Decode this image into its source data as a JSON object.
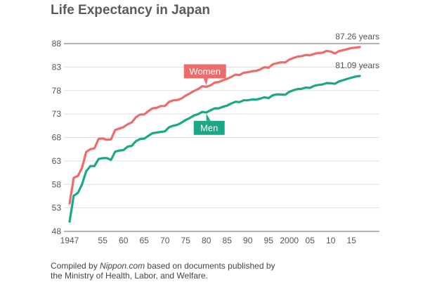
{
  "chart_data": {
    "type": "line",
    "title": "Life Expectancy in Japan",
    "xlabel": "",
    "ylabel": "",
    "xlim": [
      1947,
      2017
    ],
    "ylim": [
      48,
      88
    ],
    "yticks": [
      48,
      53,
      58,
      63,
      68,
      73,
      78,
      83,
      88
    ],
    "xticks": [
      {
        "value": 1947,
        "label": "1947"
      },
      {
        "value": 1955,
        "label": "55"
      },
      {
        "value": 1960,
        "label": "60"
      },
      {
        "value": 1965,
        "label": "65"
      },
      {
        "value": 1970,
        "label": "70"
      },
      {
        "value": 1975,
        "label": "75"
      },
      {
        "value": 1980,
        "label": "80"
      },
      {
        "value": 1985,
        "label": "85"
      },
      {
        "value": 1990,
        "label": "90"
      },
      {
        "value": 1995,
        "label": "95"
      },
      {
        "value": 2000,
        "label": "2000"
      },
      {
        "value": 2005,
        "label": "05"
      },
      {
        "value": 2010,
        "label": "10"
      },
      {
        "value": 2015,
        "label": "15"
      }
    ],
    "grid": true,
    "x": [
      1947,
      1948,
      1949,
      1950,
      1951,
      1952,
      1953,
      1954,
      1955,
      1956,
      1957,
      1958,
      1959,
      1960,
      1961,
      1962,
      1963,
      1964,
      1965,
      1966,
      1967,
      1968,
      1969,
      1970,
      1971,
      1972,
      1973,
      1974,
      1975,
      1976,
      1977,
      1978,
      1979,
      1980,
      1981,
      1982,
      1983,
      1984,
      1985,
      1986,
      1987,
      1988,
      1989,
      1990,
      1991,
      1992,
      1993,
      1994,
      1995,
      1996,
      1997,
      1998,
      1999,
      2000,
      2001,
      2002,
      2003,
      2004,
      2005,
      2006,
      2007,
      2008,
      2009,
      2010,
      2011,
      2012,
      2013,
      2014,
      2015,
      2016,
      2017
    ],
    "series": [
      {
        "name": "Women",
        "color": "#ec6b6b",
        "end_label": "87.26 years",
        "values": [
          53.96,
          59.4,
          59.8,
          61.5,
          64.9,
          65.5,
          65.7,
          67.7,
          67.8,
          67.5,
          67.6,
          69.6,
          69.9,
          70.2,
          70.8,
          71.2,
          72.3,
          72.9,
          72.9,
          73.6,
          74.2,
          74.3,
          74.7,
          74.7,
          75.6,
          75.9,
          76.0,
          76.3,
          76.9,
          77.4,
          77.9,
          78.3,
          78.9,
          78.8,
          79.1,
          79.7,
          79.8,
          80.2,
          80.5,
          80.9,
          81.4,
          81.3,
          81.8,
          81.9,
          82.1,
          82.2,
          82.5,
          82.98,
          82.85,
          83.59,
          83.82,
          84.01,
          83.99,
          84.6,
          84.93,
          85.23,
          85.33,
          85.59,
          85.52,
          85.81,
          85.99,
          86.05,
          86.44,
          86.3,
          85.9,
          86.41,
          86.61,
          86.83,
          87.05,
          87.14,
          87.26
        ]
      },
      {
        "name": "Men",
        "color": "#1aa886",
        "end_label": "81.09 years",
        "values": [
          50.06,
          55.6,
          56.2,
          58.0,
          60.8,
          61.9,
          61.9,
          63.41,
          63.6,
          63.59,
          63.24,
          64.98,
          65.21,
          65.32,
          66.03,
          66.23,
          67.21,
          67.67,
          67.74,
          68.35,
          68.91,
          69.05,
          69.18,
          69.31,
          70.17,
          70.5,
          70.7,
          71.16,
          71.73,
          72.15,
          72.69,
          72.97,
          73.46,
          73.35,
          73.79,
          74.22,
          74.2,
          74.54,
          74.78,
          75.23,
          75.61,
          75.54,
          75.91,
          75.92,
          76.11,
          76.09,
          76.25,
          76.57,
          76.38,
          77.01,
          77.19,
          77.16,
          77.1,
          77.72,
          78.07,
          78.32,
          78.36,
          78.64,
          78.56,
          79.0,
          79.19,
          79.29,
          79.59,
          79.55,
          79.44,
          79.94,
          80.21,
          80.5,
          80.75,
          80.98,
          81.09
        ]
      }
    ],
    "annotations": [
      {
        "series": "Women",
        "text": "Women",
        "at_x": 1980
      },
      {
        "series": "Men",
        "text": "Men",
        "at_x": 1980
      }
    ]
  },
  "source": {
    "prefix": "Compiled by ",
    "italic": "Nippon.com",
    "suffix": " based on documents published by",
    "line2": "the Ministry of Health, Labor, and Welfare."
  }
}
